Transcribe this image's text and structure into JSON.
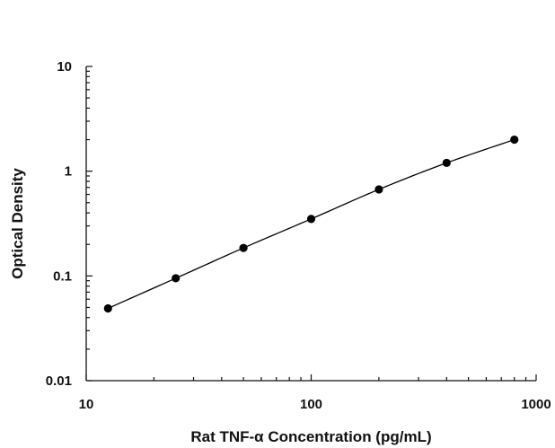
{
  "chart_data": {
    "type": "scatter",
    "title": "",
    "xlabel": "Rat TNF-α Concentration (pg/mL)",
    "ylabel": "Optical Density",
    "xscale": "log",
    "yscale": "log",
    "xlim": [
      10,
      1000
    ],
    "ylim": [
      0.01,
      10
    ],
    "x_ticks": [
      {
        "value": 10,
        "label": "10"
      },
      {
        "value": 100,
        "label": "100"
      },
      {
        "value": 1000,
        "label": "1000"
      }
    ],
    "y_ticks": [
      {
        "value": 0.01,
        "label": "0.01"
      },
      {
        "value": 0.1,
        "label": "0.1"
      },
      {
        "value": 1,
        "label": "1"
      },
      {
        "value": 10,
        "label": "10"
      }
    ],
    "grid": false,
    "legend": "none",
    "series": [
      {
        "x": [
          12.5,
          25,
          50,
          100,
          200,
          400,
          800
        ],
        "y": [
          0.049,
          0.095,
          0.185,
          0.35,
          0.67,
          1.2,
          2.0
        ],
        "marker": "filled-circle",
        "fit_line": true
      }
    ],
    "colors": {
      "points": "#000000",
      "line": "#000000",
      "axes": "#111111"
    }
  }
}
